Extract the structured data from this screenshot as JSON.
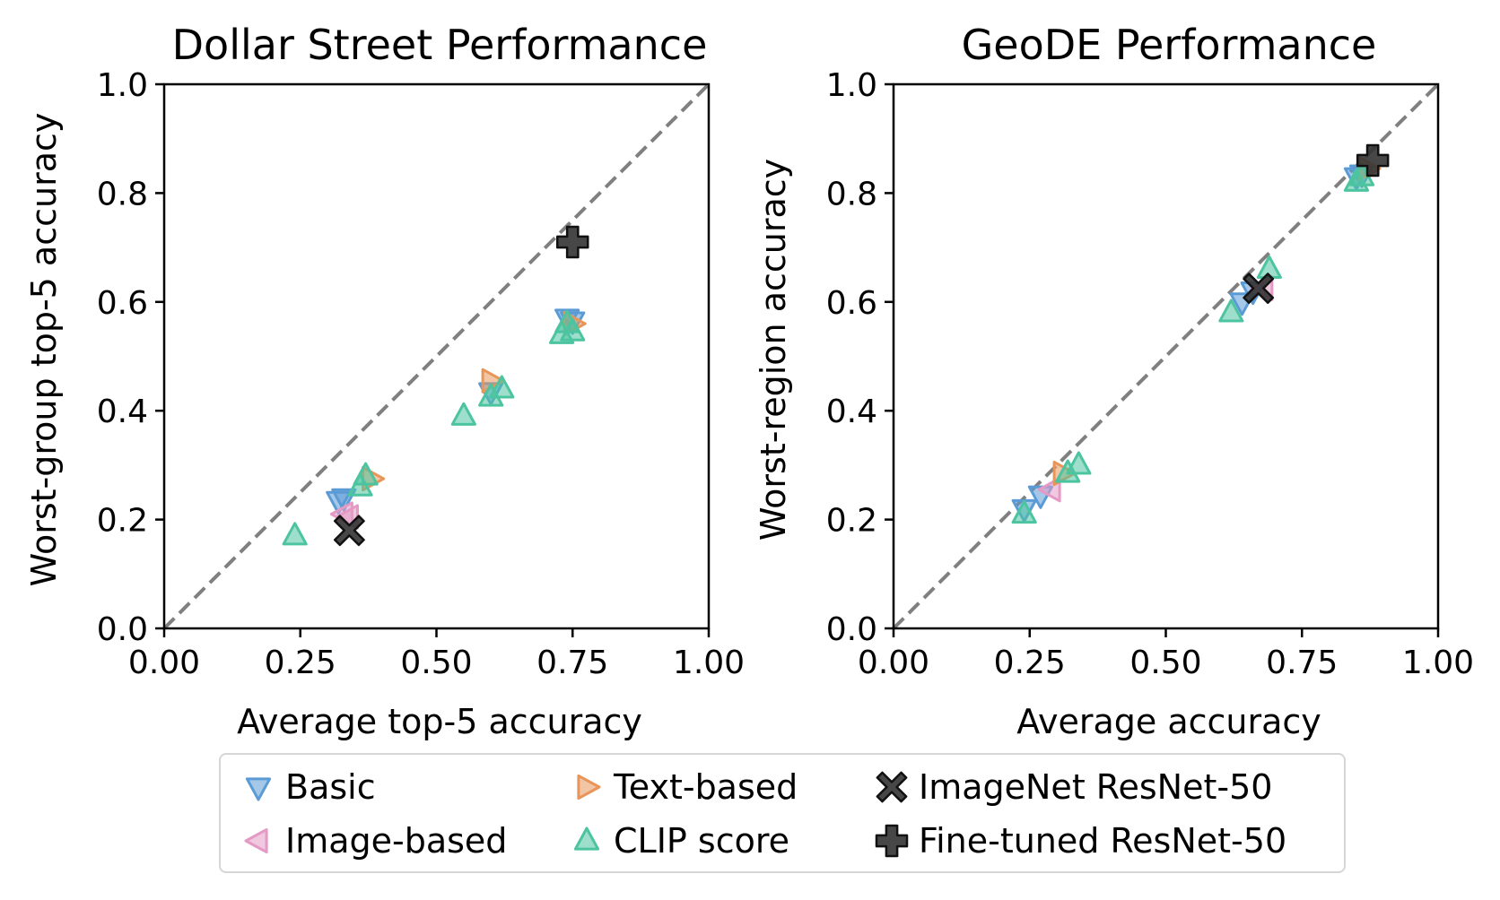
{
  "chart_data": [
    {
      "type": "scatter",
      "title": "Dollar Street Performance",
      "xlabel": "Average top-5 accuracy",
      "ylabel": "Worst-group top-5 accuracy",
      "xlim": [
        0.0,
        1.0
      ],
      "ylim": [
        0.0,
        1.0
      ],
      "xticks": [
        "0.00",
        "0.25",
        "0.50",
        "0.75",
        "1.00"
      ],
      "yticks": [
        "0.0",
        "0.2",
        "0.4",
        "0.6",
        "0.8",
        "1.0"
      ],
      "reference_line": "y = x (dashed)",
      "series": [
        {
          "name": "Basic",
          "points": [
            [
              0.32,
              0.235
            ],
            [
              0.33,
              0.24
            ],
            [
              0.6,
              0.435
            ],
            [
              0.74,
              0.57
            ],
            [
              0.75,
              0.565
            ]
          ]
        },
        {
          "name": "Image-based",
          "points": [
            [
              0.33,
              0.21
            ],
            [
              0.34,
              0.205
            ]
          ]
        },
        {
          "name": "Text-based",
          "points": [
            [
              0.38,
              0.275
            ],
            [
              0.6,
              0.455
            ],
            [
              0.75,
              0.56
            ]
          ]
        },
        {
          "name": "CLIP score",
          "points": [
            [
              0.24,
              0.17
            ],
            [
              0.55,
              0.39
            ],
            [
              0.6,
              0.425
            ],
            [
              0.62,
              0.44
            ],
            [
              0.36,
              0.26
            ],
            [
              0.37,
              0.28
            ],
            [
              0.73,
              0.54
            ],
            [
              0.75,
              0.545
            ],
            [
              0.74,
              0.56
            ]
          ]
        },
        {
          "name": "ImageNet ResNet-50",
          "points": [
            [
              0.34,
              0.18
            ]
          ]
        },
        {
          "name": "Fine-tuned ResNet-50",
          "points": [
            [
              0.75,
              0.71
            ]
          ]
        }
      ]
    },
    {
      "type": "scatter",
      "title": "GeoDE Performance",
      "xlabel": "Average accuracy",
      "ylabel": "Worst-region accuracy",
      "xlim": [
        0.0,
        1.0
      ],
      "ylim": [
        0.0,
        1.0
      ],
      "xticks": [
        "0.00",
        "0.25",
        "0.50",
        "0.75",
        "1.00"
      ],
      "yticks": [
        "0.0",
        "0.2",
        "0.4",
        "0.6",
        "0.8",
        "1.0"
      ],
      "reference_line": "y = x (dashed)",
      "series": [
        {
          "name": "Basic",
          "points": [
            [
              0.24,
              0.22
            ],
            [
              0.27,
              0.245
            ],
            [
              0.64,
              0.6
            ],
            [
              0.66,
              0.62
            ],
            [
              0.85,
              0.83
            ],
            [
              0.86,
              0.835
            ]
          ]
        },
        {
          "name": "Image-based",
          "points": [
            [
              0.29,
              0.255
            ],
            [
              0.68,
              0.625
            ]
          ]
        },
        {
          "name": "Text-based",
          "points": [
            [
              0.31,
              0.285
            ],
            [
              0.87,
              0.845
            ]
          ]
        },
        {
          "name": "CLIP score",
          "points": [
            [
              0.24,
              0.21
            ],
            [
              0.32,
              0.285
            ],
            [
              0.34,
              0.3
            ],
            [
              0.62,
              0.58
            ],
            [
              0.69,
              0.66
            ],
            [
              0.85,
              0.82
            ],
            [
              0.86,
              0.83
            ]
          ]
        },
        {
          "name": "ImageNet ResNet-50",
          "points": [
            [
              0.67,
              0.625
            ]
          ]
        },
        {
          "name": "Fine-tuned ResNet-50",
          "points": [
            [
              0.88,
              0.86
            ]
          ]
        }
      ]
    }
  ],
  "legend": {
    "items": [
      {
        "label": "Basic",
        "marker": "triangle-down",
        "color": "#5b9bd5"
      },
      {
        "label": "Text-based",
        "marker": "triangle-right",
        "color": "#e8955a"
      },
      {
        "label": "ImageNet ResNet-50",
        "marker": "x",
        "color": "#333333"
      },
      {
        "label": "Image-based",
        "marker": "triangle-left",
        "color": "#e49ac4"
      },
      {
        "label": "CLIP score",
        "marker": "triangle-up",
        "color": "#4dc4a0"
      },
      {
        "label": "Fine-tuned ResNet-50",
        "marker": "plus",
        "color": "#333333"
      }
    ]
  },
  "colors": {
    "Basic": "#5b9bd5",
    "Image-based": "#e49ac4",
    "Text-based": "#e8955a",
    "CLIP score": "#4dc4a0",
    "ImageNet ResNet-50": "#333333",
    "Fine-tuned ResNet-50": "#333333",
    "reference_line": "#808080"
  }
}
